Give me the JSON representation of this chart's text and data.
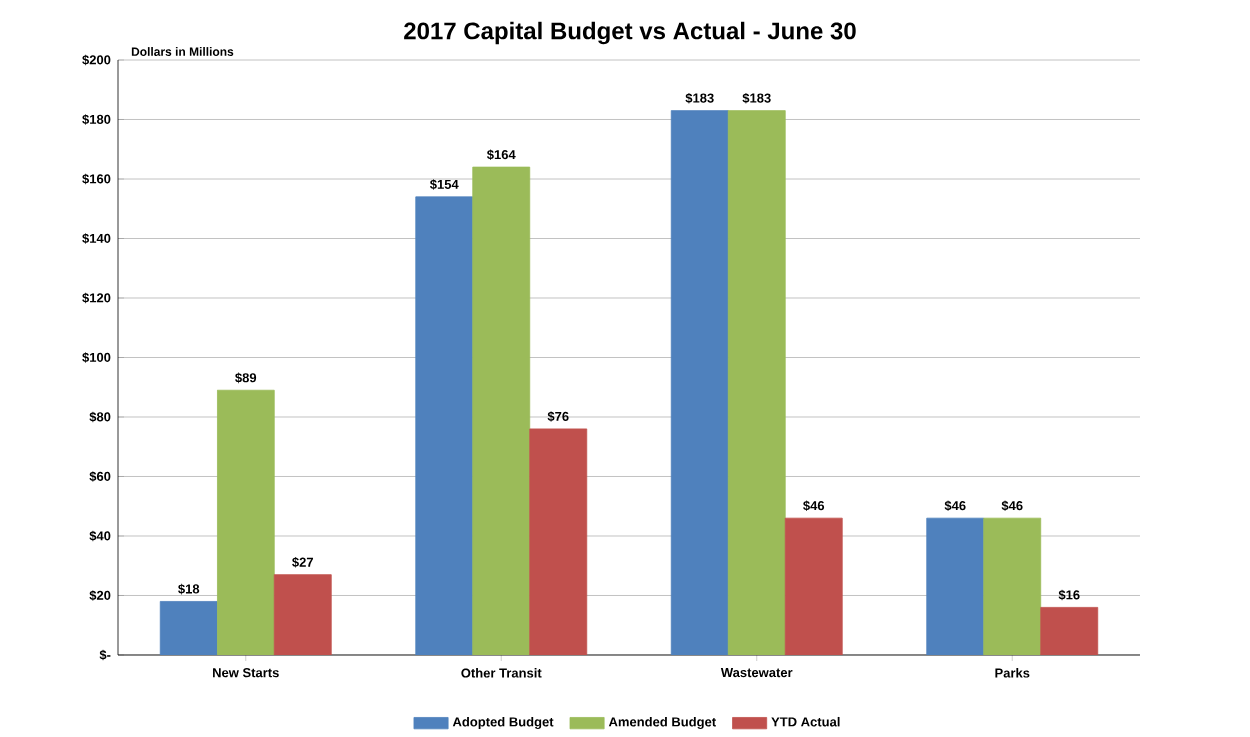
{
  "chart_data": {
    "type": "bar",
    "title": "2017 Capital Budget vs Actual - June 30",
    "ylabel": "Dollars in Millions",
    "categories": [
      "New Starts",
      "Other Transit",
      "Wastewater",
      "Parks"
    ],
    "series": [
      {
        "name": "Adopted Budget",
        "color": "#4f81bd",
        "values": [
          18,
          154,
          183,
          46
        ],
        "value_labels": [
          "$18",
          "$154",
          "$183",
          "$46"
        ]
      },
      {
        "name": "Amended Budget",
        "color": "#9bbb59",
        "values": [
          89,
          164,
          183,
          46
        ],
        "value_labels": [
          "$89",
          "$164",
          "$183",
          "$46"
        ]
      },
      {
        "name": "YTD Actual",
        "color": "#c0504d",
        "values": [
          27,
          76,
          46,
          16
        ],
        "value_labels": [
          "$27",
          "$76",
          "$46",
          "$16"
        ]
      }
    ],
    "ylim": [
      0,
      200
    ],
    "yticks": [
      {
        "value": 0,
        "label": "$-"
      },
      {
        "value": 20,
        "label": "$20"
      },
      {
        "value": 40,
        "label": "$40"
      },
      {
        "value": 60,
        "label": "$60"
      },
      {
        "value": 80,
        "label": "$80"
      },
      {
        "value": 100,
        "label": "$100"
      },
      {
        "value": 120,
        "label": "$120"
      },
      {
        "value": 140,
        "label": "$140"
      },
      {
        "value": 160,
        "label": "$160"
      },
      {
        "value": 180,
        "label": "$180"
      },
      {
        "value": 200,
        "label": "$200"
      }
    ],
    "grid": "y",
    "legend": "bottom"
  }
}
